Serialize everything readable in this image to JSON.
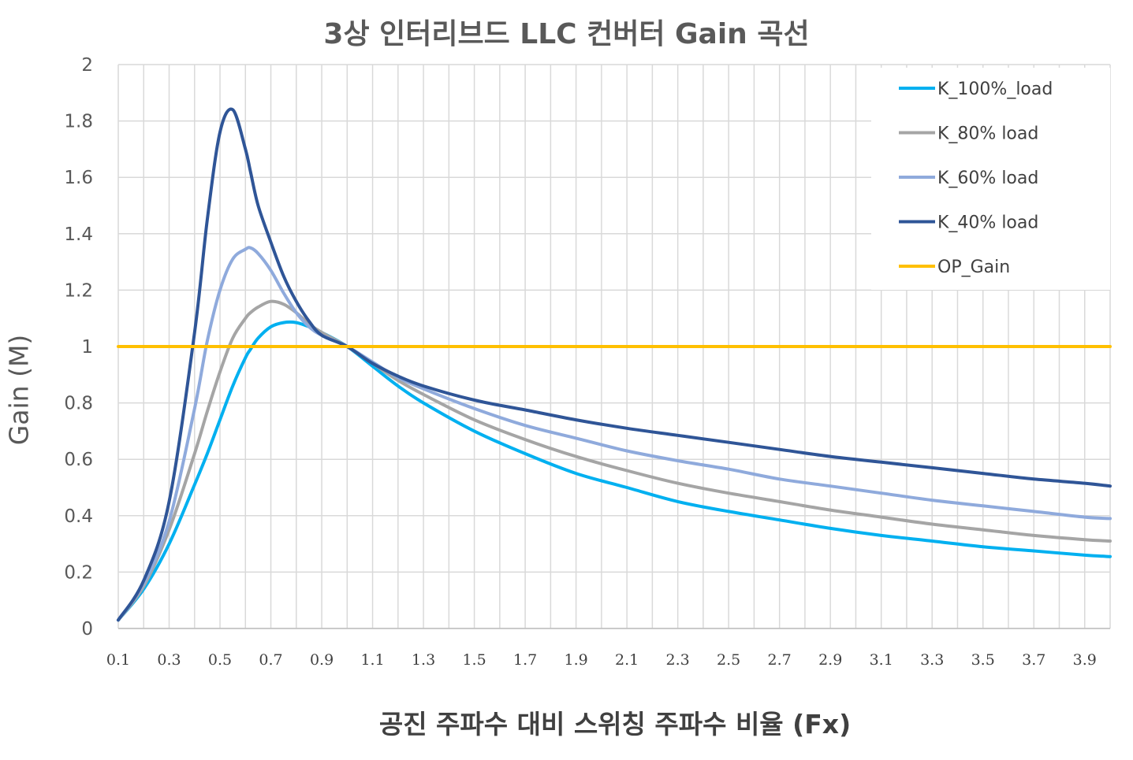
{
  "chart_data": {
    "type": "line",
    "title": "3상 인터리브드 LLC 컨버터 Gain 곡선",
    "xlabel": "공진 주파수 대비 스위칭 주파수 비율 (Fx)",
    "ylabel": "Gain (M)",
    "xlim": [
      0.1,
      4.0
    ],
    "ylim": [
      0,
      2
    ],
    "x_ticks": [
      "0.1",
      "0.3",
      "0.5",
      "0.7",
      "0.9",
      "1.1",
      "1.3",
      "1.5",
      "1.7",
      "1.9",
      "2.1",
      "2.3",
      "2.5",
      "2.7",
      "2.9",
      "3.1",
      "3.3",
      "3.5",
      "3.7",
      "3.9"
    ],
    "y_ticks": [
      "0",
      "0.2",
      "0.4",
      "0.6",
      "0.8",
      "1",
      "1.2",
      "1.4",
      "1.6",
      "1.8",
      "2"
    ],
    "grid": true,
    "legend_position": "top-right",
    "x": [
      0.1,
      0.2,
      0.3,
      0.4,
      0.45,
      0.5,
      0.55,
      0.6,
      0.62,
      0.65,
      0.7,
      0.75,
      0.8,
      0.85,
      0.9,
      1.0,
      1.1,
      1.2,
      1.3,
      1.5,
      1.7,
      1.9,
      2.1,
      2.3,
      2.5,
      2.7,
      2.9,
      3.1,
      3.3,
      3.5,
      3.7,
      3.9,
      4.0
    ],
    "series": [
      {
        "name": "K_100%_load",
        "color": "#00b0f0",
        "values": [
          0.03,
          0.14,
          0.3,
          0.51,
          0.62,
          0.74,
          0.86,
          0.96,
          0.99,
          1.03,
          1.07,
          1.085,
          1.085,
          1.07,
          1.05,
          1.0,
          0.93,
          0.86,
          0.8,
          0.7,
          0.62,
          0.55,
          0.5,
          0.45,
          0.415,
          0.385,
          0.355,
          0.33,
          0.31,
          0.29,
          0.275,
          0.26,
          0.255
        ]
      },
      {
        "name": "K_80% load",
        "color": "#a5a5a5",
        "values": [
          0.03,
          0.15,
          0.35,
          0.62,
          0.77,
          0.91,
          1.03,
          1.1,
          1.12,
          1.14,
          1.16,
          1.15,
          1.12,
          1.08,
          1.05,
          1.0,
          0.94,
          0.88,
          0.83,
          0.74,
          0.67,
          0.61,
          0.56,
          0.515,
          0.48,
          0.45,
          0.42,
          0.395,
          0.37,
          0.35,
          0.33,
          0.315,
          0.31
        ]
      },
      {
        "name": "K_60% load",
        "color": "#8faadc",
        "values": [
          0.03,
          0.16,
          0.38,
          0.78,
          1.02,
          1.2,
          1.31,
          1.345,
          1.35,
          1.33,
          1.27,
          1.19,
          1.12,
          1.07,
          1.04,
          1.0,
          0.945,
          0.89,
          0.85,
          0.78,
          0.72,
          0.675,
          0.63,
          0.595,
          0.565,
          0.53,
          0.505,
          0.48,
          0.455,
          0.435,
          0.415,
          0.395,
          0.39
        ]
      },
      {
        "name": "K_40% load",
        "color": "#2f5597",
        "values": [
          0.03,
          0.17,
          0.45,
          1.05,
          1.45,
          1.76,
          1.84,
          1.7,
          1.62,
          1.5,
          1.37,
          1.25,
          1.16,
          1.09,
          1.04,
          1.0,
          0.94,
          0.895,
          0.86,
          0.81,
          0.775,
          0.74,
          0.71,
          0.685,
          0.66,
          0.635,
          0.61,
          0.59,
          0.57,
          0.55,
          0.53,
          0.515,
          0.505
        ]
      },
      {
        "name": "OP_Gain",
        "color": "#ffc000",
        "values": [
          1,
          1,
          1,
          1,
          1,
          1,
          1,
          1,
          1,
          1,
          1,
          1,
          1,
          1,
          1,
          1,
          1,
          1,
          1,
          1,
          1,
          1,
          1,
          1,
          1,
          1,
          1,
          1,
          1,
          1,
          1,
          1,
          1
        ]
      }
    ]
  }
}
